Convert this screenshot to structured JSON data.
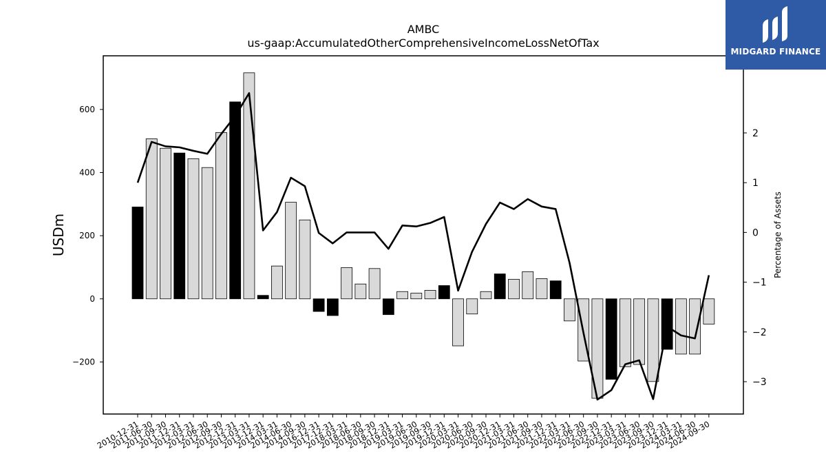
{
  "chart_data": {
    "type": "bar+line",
    "title": "AMBC",
    "subtitle": "us-gaap:AccumulatedOtherComprehensiveIncomeLossNetOfTax",
    "ylabel": "USDm",
    "y2label": "Percentage of Assets",
    "ylim": [
      -365,
      770
    ],
    "y2lim": [
      -3.65,
      3.55
    ],
    "yticks": [
      -200,
      0,
      200,
      400,
      600
    ],
    "y2ticks": [
      -3,
      -2,
      -1,
      0,
      1,
      2
    ],
    "categories": [
      "2010-12-31",
      "2011-06-30",
      "2011-09-30",
      "2011-12-31",
      "2012-03-31",
      "2012-06-30",
      "2012-09-30",
      "2012-12-31",
      "2013-03-31",
      "2013-12-31",
      "2014-03-31",
      "2014-06-30",
      "2014-09-30",
      "2016-12-31",
      "2017-12-31",
      "2018-03-31",
      "2018-06-30",
      "2018-09-30",
      "2018-12-31",
      "2019-03-31",
      "2019-06-30",
      "2019-09-30",
      "2019-12-31",
      "2020-03-31",
      "2020-06-30",
      "2020-09-30",
      "2020-12-31",
      "2021-03-31",
      "2021-06-30",
      "2021-09-30",
      "2021-12-31",
      "2022-03-31",
      "2022-06-30",
      "2022-09-30",
      "2022-12-31",
      "2023-03-31",
      "2023-06-30",
      "2023-09-30",
      "2023-12-31",
      "2024-03-31",
      "2024-06-30",
      "2024-09-30"
    ],
    "series": [
      {
        "type": "bar",
        "values": [
          291,
          507,
          477,
          462,
          444,
          416,
          527,
          624,
          716,
          11,
          104,
          306,
          250,
          -40,
          -53,
          99,
          47,
          96,
          -50,
          23,
          18,
          27,
          42,
          -149,
          -48,
          23,
          79,
          62,
          86,
          64,
          57,
          -70,
          -197,
          -315,
          -255,
          -215,
          -208,
          -262,
          -160,
          -175,
          -175,
          -80
        ],
        "highlight": [
          true,
          false,
          false,
          true,
          false,
          false,
          false,
          true,
          false,
          true,
          false,
          false,
          false,
          true,
          true,
          false,
          false,
          false,
          true,
          false,
          false,
          false,
          true,
          false,
          false,
          false,
          true,
          false,
          false,
          false,
          true,
          false,
          false,
          false,
          true,
          false,
          false,
          false,
          true,
          false,
          false,
          false
        ]
      },
      {
        "type": "line",
        "axis": "right",
        "values": [
          1.0,
          1.82,
          1.73,
          1.71,
          1.64,
          1.58,
          1.98,
          2.34,
          2.8,
          0.04,
          0.41,
          1.1,
          0.93,
          -0.01,
          -0.22,
          0.0,
          0.0,
          0.0,
          -0.33,
          0.14,
          0.12,
          0.19,
          0.31,
          -1.17,
          -0.39,
          0.17,
          0.6,
          0.47,
          0.67,
          0.52,
          0.47,
          -0.61,
          -2.02,
          -3.36,
          -3.17,
          -2.65,
          -2.57,
          -3.35,
          -1.89,
          -2.07,
          -2.13,
          -0.86
        ]
      }
    ],
    "colors": {
      "bar_highlight": "#000000",
      "bar_default": "#d9d9d9",
      "bar_edge": "#000000",
      "line": "#000000"
    },
    "grid": false
  },
  "logo": {
    "text": "MIDGARD FINANCE",
    "bg_color": "#2f5aa6"
  }
}
